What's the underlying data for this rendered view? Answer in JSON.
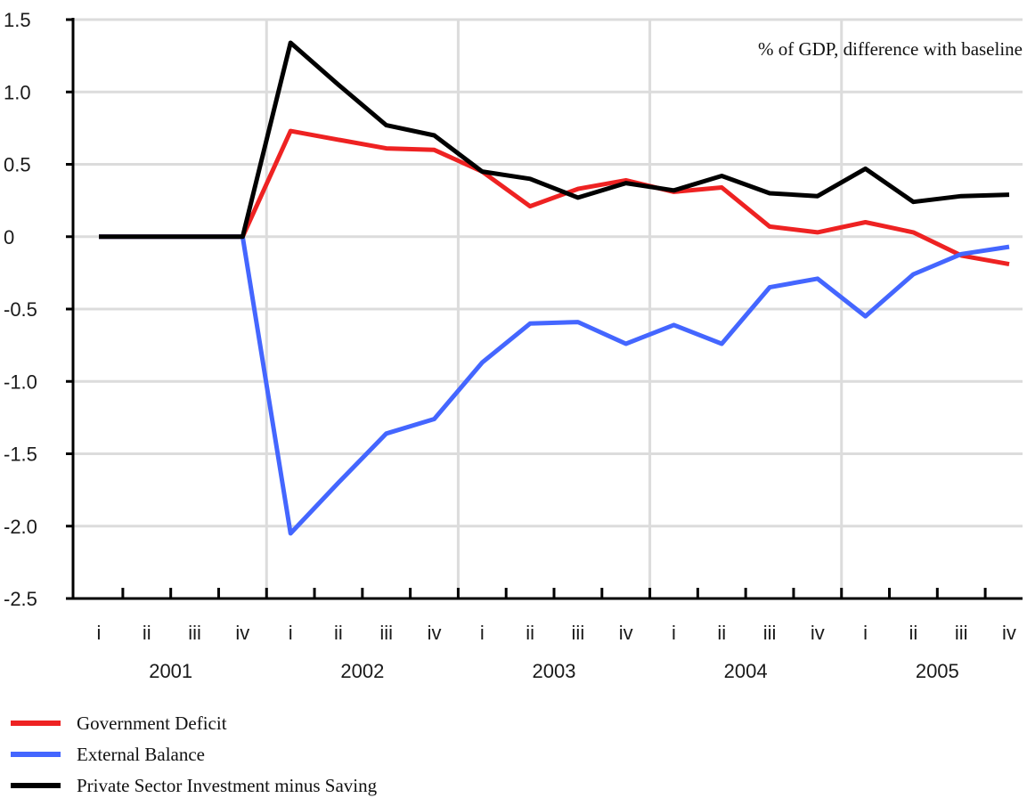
{
  "chart_data": {
    "type": "line",
    "annotation": "% of GDP, difference with baseline",
    "quarters": [
      "i",
      "ii",
      "iii",
      "iv",
      "i",
      "ii",
      "iii",
      "iv",
      "i",
      "ii",
      "iii",
      "iv",
      "i",
      "ii",
      "iii",
      "iv",
      "i",
      "ii",
      "iii",
      "iv"
    ],
    "years": [
      "2001",
      "2002",
      "2003",
      "2004",
      "2005"
    ],
    "x": [
      "2001 i",
      "2001 ii",
      "2001 iii",
      "2001 iv",
      "2002 i",
      "2002 ii",
      "2002 iii",
      "2002 iv",
      "2003 i",
      "2003 ii",
      "2003 iii",
      "2003 iv",
      "2004 i",
      "2004 ii",
      "2004 iii",
      "2004 iv",
      "2005 i",
      "2005 ii",
      "2005 iii",
      "2005 iv"
    ],
    "ylim": [
      -2.5,
      1.5
    ],
    "yticks": [
      1.5,
      1.0,
      0.5,
      0,
      -0.5,
      -1.0,
      -1.5,
      -2.0,
      -2.5
    ],
    "ytick_labels": [
      "1.5",
      "1.0",
      "0.5",
      "0",
      "-0.5",
      "-1.0",
      "-1.5",
      "-2.0",
      "-2.5"
    ],
    "grid": true,
    "legend_position": "bottom-left",
    "series": [
      {
        "name": "Government Deficit",
        "color": "#ee2222",
        "values": [
          0,
          0,
          0,
          0,
          0.73,
          0.67,
          0.61,
          0.6,
          0.45,
          0.21,
          0.33,
          0.39,
          0.31,
          0.34,
          0.07,
          0.03,
          0.1,
          0.03,
          -0.13,
          -0.19
        ]
      },
      {
        "name": "External Balance",
        "color": "#4466ff",
        "values": [
          0,
          0,
          0,
          0,
          -2.05,
          -1.7,
          -1.36,
          -1.26,
          -0.87,
          -0.6,
          -0.59,
          -0.74,
          -0.61,
          -0.74,
          -0.35,
          -0.29,
          -0.55,
          -0.26,
          -0.12,
          -0.07
        ]
      },
      {
        "name": "Private Sector Investment minus Saving",
        "color": "#000000",
        "values": [
          0,
          0,
          0,
          0,
          1.34,
          1.05,
          0.77,
          0.7,
          0.45,
          0.4,
          0.27,
          0.37,
          0.32,
          0.42,
          0.3,
          0.28,
          0.47,
          0.24,
          0.28,
          0.29
        ]
      }
    ]
  }
}
